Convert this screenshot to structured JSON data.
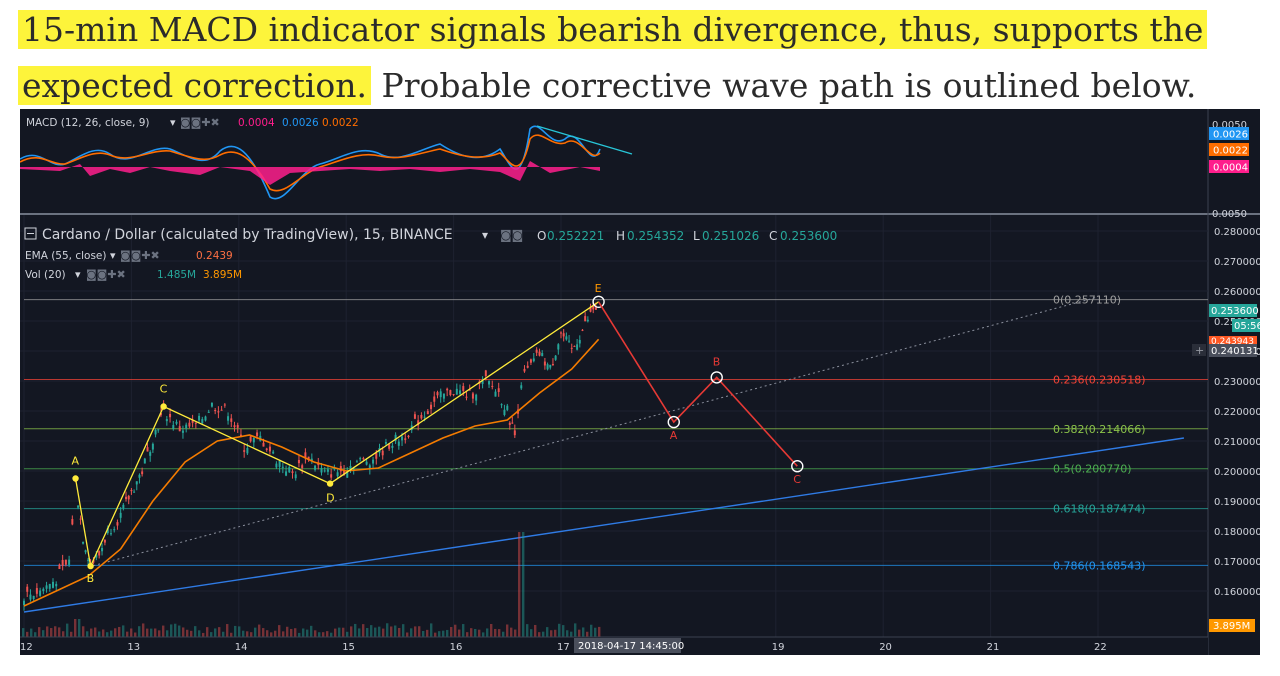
{
  "headline": {
    "highlighted_line1": "15-min MACD indicator signals bearish divergence, thus, supports the",
    "highlighted_line2": "expected correction.",
    "rest": " Probable corrective wave path is outlined below."
  },
  "macd_pane": {
    "legend": "MACD (12, 26, close, 9)",
    "values": {
      "histogram": "0.0004",
      "macd": "0.0026",
      "signal": "0.0022"
    },
    "axis_labels": [
      "0.0050",
      "0.0026",
      "0.0022",
      "0.0004",
      "0.0050"
    ],
    "colors": {
      "macd": "#2196f3",
      "signal": "#ff6d00",
      "histogram": "#ff1e8c",
      "divergence": "#28c6d8"
    }
  },
  "price_pane": {
    "title": "Cardano / Dollar (calculated by TradingView), 15, BINANCE",
    "ohlc": {
      "o_label": "O",
      "o": "0.252221",
      "h_label": "H",
      "h": "0.254352",
      "l_label": "L",
      "l": "0.251026",
      "c_label": "C",
      "c": "0.253600"
    },
    "ema_legend": "EMA (55, close)",
    "ema_value": "0.2439",
    "vol_legend": "Vol (20)",
    "vol_values": [
      "1.485M",
      "3.895M"
    ],
    "price_badges": {
      "last": "0.253600",
      "countdown": "05:56",
      "ema": "0.243943",
      "crosshair": "0.240131",
      "volume": "3.895M"
    },
    "time_badge": "2018-04-17 14:45:00",
    "colors": {
      "bg": "#131722",
      "up": "#26a69a",
      "down": "#ef5350",
      "ema": "#f57c00",
      "wave": "#ffeb3b",
      "projection": "#e53935",
      "trend": "#2f7be5"
    }
  },
  "chart_data": {
    "type": "line",
    "title": "Cardano / Dollar (calculated by TradingView), 15, BINANCE",
    "y_axis_ticks": [
      "0.280000",
      "0.270000",
      "0.260000",
      "0.250000",
      "0.240000",
      "0.230000",
      "0.220000",
      "0.210000",
      "0.200000",
      "0.190000",
      "0.180000",
      "0.170000",
      "0.160000"
    ],
    "x_axis_ticks": [
      "12",
      "13",
      "14",
      "15",
      "16",
      "17",
      "19",
      "20",
      "21",
      "22"
    ],
    "ylim": [
      0.152,
      0.286
    ],
    "wave_points": [
      {
        "label": "A",
        "x": 12.48,
        "y": 0.1975
      },
      {
        "label": "B",
        "x": 12.62,
        "y": 0.1683
      },
      {
        "label": "C",
        "x": 13.3,
        "y": 0.2215
      },
      {
        "label": "D",
        "x": 14.85,
        "y": 0.1958
      },
      {
        "label": "E",
        "x": 17.35,
        "y": 0.2564
      }
    ],
    "projected_points": [
      {
        "label": "E",
        "x": 17.35,
        "y": 0.2564
      },
      {
        "label": "A",
        "x": 18.05,
        "y": 0.2163
      },
      {
        "label": "B",
        "x": 18.45,
        "y": 0.2312
      },
      {
        "label": "C",
        "x": 19.2,
        "y": 0.2016
      }
    ],
    "fibonacci": [
      {
        "label": "0(0.257110)",
        "level": 0.25711,
        "color": "#9e9e9e"
      },
      {
        "label": "0.236(0.230518)",
        "level": 0.230518,
        "color": "#f44336"
      },
      {
        "label": "0.382(0.214066)",
        "level": 0.214066,
        "color": "#8bc34a"
      },
      {
        "label": "0.5(0.200770)",
        "level": 0.20077,
        "color": "#4caf50"
      },
      {
        "label": "0.618(0.187474)",
        "level": 0.187474,
        "color": "#26a69a"
      },
      {
        "label": "0.786(0.168543)",
        "level": 0.168543,
        "color": "#2196f3"
      }
    ],
    "price_path": [
      [
        12.0,
        0.1584
      ],
      [
        12.15,
        0.16
      ],
      [
        12.3,
        0.164
      ],
      [
        12.42,
        0.17
      ],
      [
        12.48,
        0.196
      ],
      [
        12.55,
        0.178
      ],
      [
        12.62,
        0.169
      ],
      [
        12.7,
        0.172
      ],
      [
        12.78,
        0.18
      ],
      [
        12.9,
        0.185
      ],
      [
        13.0,
        0.193
      ],
      [
        13.1,
        0.2
      ],
      [
        13.2,
        0.211
      ],
      [
        13.3,
        0.22
      ],
      [
        13.45,
        0.214
      ],
      [
        13.6,
        0.215
      ],
      [
        13.75,
        0.222
      ],
      [
        13.9,
        0.22
      ],
      [
        14.05,
        0.208
      ],
      [
        14.2,
        0.211
      ],
      [
        14.35,
        0.204
      ],
      [
        14.5,
        0.199
      ],
      [
        14.65,
        0.205
      ],
      [
        14.8,
        0.199
      ],
      [
        14.95,
        0.2
      ],
      [
        15.1,
        0.203
      ],
      [
        15.25,
        0.204
      ],
      [
        15.4,
        0.209
      ],
      [
        15.55,
        0.212
      ],
      [
        15.7,
        0.218
      ],
      [
        15.85,
        0.224
      ],
      [
        16.0,
        0.227
      ],
      [
        16.15,
        0.225
      ],
      [
        16.3,
        0.23
      ],
      [
        16.42,
        0.226
      ],
      [
        16.5,
        0.22
      ],
      [
        16.57,
        0.212
      ],
      [
        16.63,
        0.23
      ],
      [
        16.72,
        0.235
      ],
      [
        16.8,
        0.239
      ],
      [
        16.9,
        0.234
      ],
      [
        17.0,
        0.246
      ],
      [
        17.1,
        0.24
      ],
      [
        17.2,
        0.247
      ],
      [
        17.3,
        0.254
      ],
      [
        17.35,
        0.2536
      ]
    ],
    "ema_path": [
      [
        12.0,
        0.155
      ],
      [
        12.3,
        0.16
      ],
      [
        12.6,
        0.165
      ],
      [
        12.9,
        0.174
      ],
      [
        13.2,
        0.19
      ],
      [
        13.5,
        0.203
      ],
      [
        13.8,
        0.21
      ],
      [
        14.1,
        0.212
      ],
      [
        14.4,
        0.208
      ],
      [
        14.7,
        0.203
      ],
      [
        15.0,
        0.2
      ],
      [
        15.3,
        0.201
      ],
      [
        15.6,
        0.206
      ],
      [
        15.9,
        0.211
      ],
      [
        16.2,
        0.215
      ],
      [
        16.5,
        0.217
      ],
      [
        16.8,
        0.226
      ],
      [
        17.1,
        0.234
      ],
      [
        17.35,
        0.2439
      ]
    ],
    "trendlines": [
      {
        "name": "trend-blue",
        "from": [
          12.0,
          0.153
        ],
        "to": [
          22.8,
          0.211
        ]
      },
      {
        "name": "trend-dotted",
        "from": [
          12.6,
          0.168
        ],
        "to": [
          22.0,
          0.258
        ]
      }
    ]
  }
}
